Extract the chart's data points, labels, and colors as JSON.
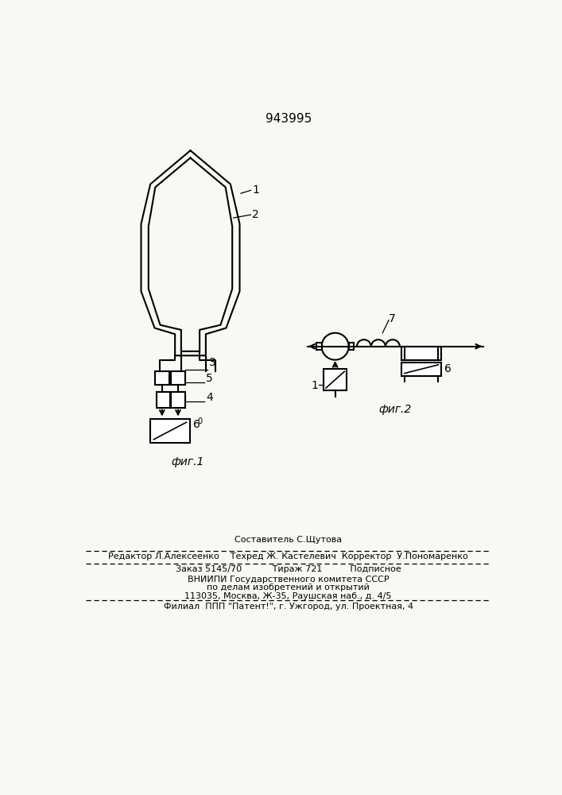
{
  "title": "943995",
  "bg_color": "#f8f8f4",
  "fig1_label": "фиг.1",
  "fig2_label": "фиг.2",
  "footer_lines": [
    "Составитель С.Щутова",
    "Редактор Л.Алексеенко    Техред Ж. Кастелевич  Корректор  У.Пономаренко",
    "Заказ 5145/70           Тираж 721          Подписное",
    "ВНИИПИ Государственного комитета СССР",
    "по делам изобретений и открытий",
    "113035, Москва, Ж-35, Раушская наб., д. 4/5",
    "Филиал  ППП \"Патент!\", г. Ужгород, ул. Проектная, 4"
  ]
}
